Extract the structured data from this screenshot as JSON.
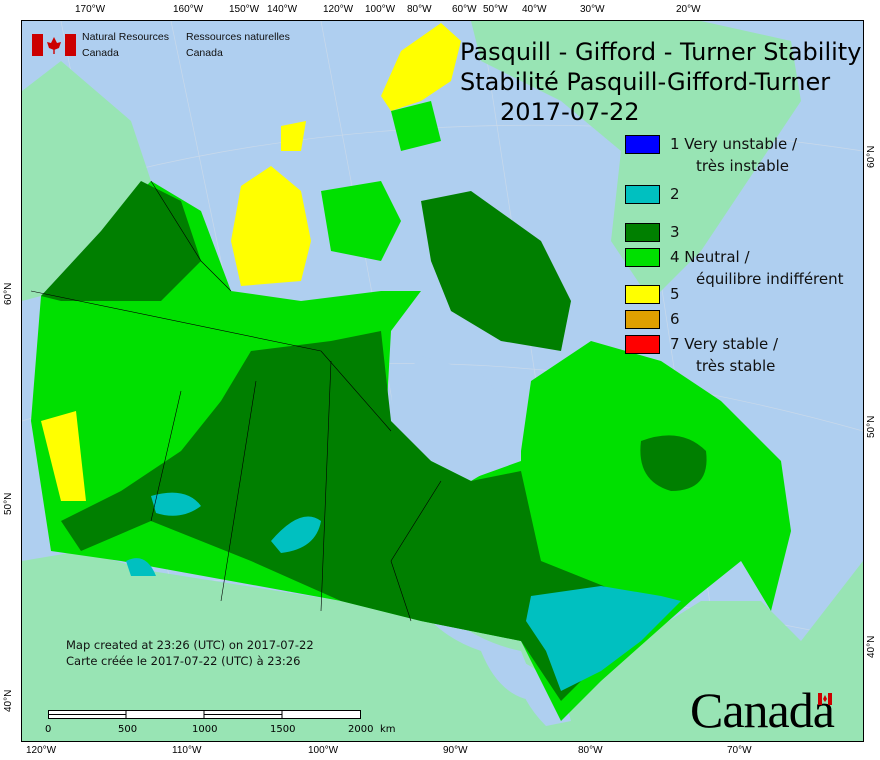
{
  "title": {
    "line1": "Pasquill - Gifford - Turner Stability",
    "line2": "Stabilité Pasquill-Gifford-Turner",
    "date": "2017-07-22"
  },
  "agency": {
    "en_line1": "Natural Resources",
    "en_line2": "Canada",
    "fr_line1": "Ressources naturelles",
    "fr_line2": "Canada"
  },
  "legend": [
    {
      "label": "1 Very unstable /",
      "label2": "très instable",
      "color": "#0000ff"
    },
    {
      "label": "2",
      "label2": "",
      "color": "#00c0c0"
    },
    {
      "label": "3",
      "label2": "",
      "color": "#007f00"
    },
    {
      "label": "4 Neutral /",
      "label2": "équilibre indifférent",
      "color": "#00e000"
    },
    {
      "label": "5",
      "label2": "",
      "color": "#ffff00"
    },
    {
      "label": "6",
      "label2": "",
      "color": "#e0a000"
    },
    {
      "label": "7 Very stable /",
      "label2": "très stable",
      "color": "#ff0000"
    }
  ],
  "credits": {
    "en": "Map created at 23:26 (UTC) on 2017-07-22",
    "fr": "Carte créée le 2017-07-22 (UTC) à 23:26"
  },
  "scale_bar": {
    "labels": [
      "0",
      "500",
      "1000",
      "1500",
      "2000"
    ],
    "unit": "km"
  },
  "wordmark": "Canada",
  "axes": {
    "top": [
      "170°W",
      "160°W",
      "150°W",
      "140°W",
      "120°W",
      "100°W",
      "80°W",
      "60°W",
      "50°W",
      "40°W",
      "30°W",
      "20°W"
    ],
    "bottom": [
      "120°W",
      "110°W",
      "100°W",
      "90°W",
      "80°W",
      "70°W"
    ],
    "left": [
      "60°N",
      "50°N",
      "40°N"
    ],
    "right": [
      "60°N",
      "50°N",
      "40°N"
    ]
  },
  "colors": {
    "ocean": "#afcff0",
    "land": "#98e4b4"
  }
}
